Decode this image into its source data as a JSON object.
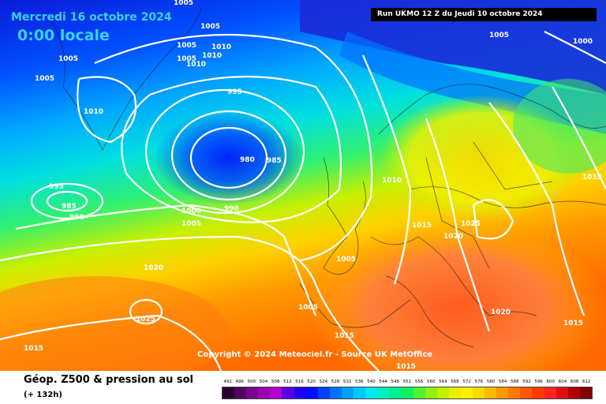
{
  "header": {
    "date": "Mercredi 16 octobre 2024",
    "time": "0:00 locale",
    "run": "Run UKMO 12 Z du Jeudi 10 octobre 2024"
  },
  "map": {
    "copyright": "Copyright © 2024 Meteociel.fr - Source UK MetOffice",
    "isobar_labels": [
      "1005",
      "1005",
      "1005",
      "1010",
      "1010",
      "1010",
      "1005",
      "1005",
      "1005",
      "1010",
      "995",
      "980",
      "985",
      "995",
      "985",
      "990",
      "1000",
      "1005",
      "990",
      "1010",
      "1015",
      "1020",
      "1025",
      "1005",
      "1020",
      "1005",
      "1025",
      "1015",
      "1015",
      "1020",
      "1015",
      "1015",
      "1015",
      "1005",
      "1000"
    ]
  },
  "footer": {
    "title": "Géop. Z500 & pression au sol",
    "subtitle": "(+ 132h)"
  },
  "legend": {
    "values": [
      "492",
      "496",
      "500",
      "504",
      "508",
      "512",
      "516",
      "520",
      "524",
      "528",
      "532",
      "536",
      "540",
      "544",
      "548",
      "552",
      "556",
      "560",
      "564",
      "568",
      "572",
      "576",
      "580",
      "584",
      "588",
      "592",
      "596",
      "600",
      "604",
      "608",
      "612"
    ],
    "colors": [
      "#2a0030",
      "#500060",
      "#7a0090",
      "#9a00b0",
      "#b400d0",
      "#5a00e0",
      "#2000f0",
      "#0010ff",
      "#0040ff",
      "#0070ff",
      "#00a0ff",
      "#00c8ff",
      "#00e8f0",
      "#00f0c0",
      "#00f090",
      "#10f060",
      "#50f030",
      "#90f010",
      "#c0f000",
      "#e8f000",
      "#fff000",
      "#ffd800",
      "#ffb800",
      "#ff9800",
      "#ff7800",
      "#ff5800",
      "#ff3800",
      "#ff2020",
      "#e01010",
      "#b00000",
      "#800000"
    ]
  }
}
